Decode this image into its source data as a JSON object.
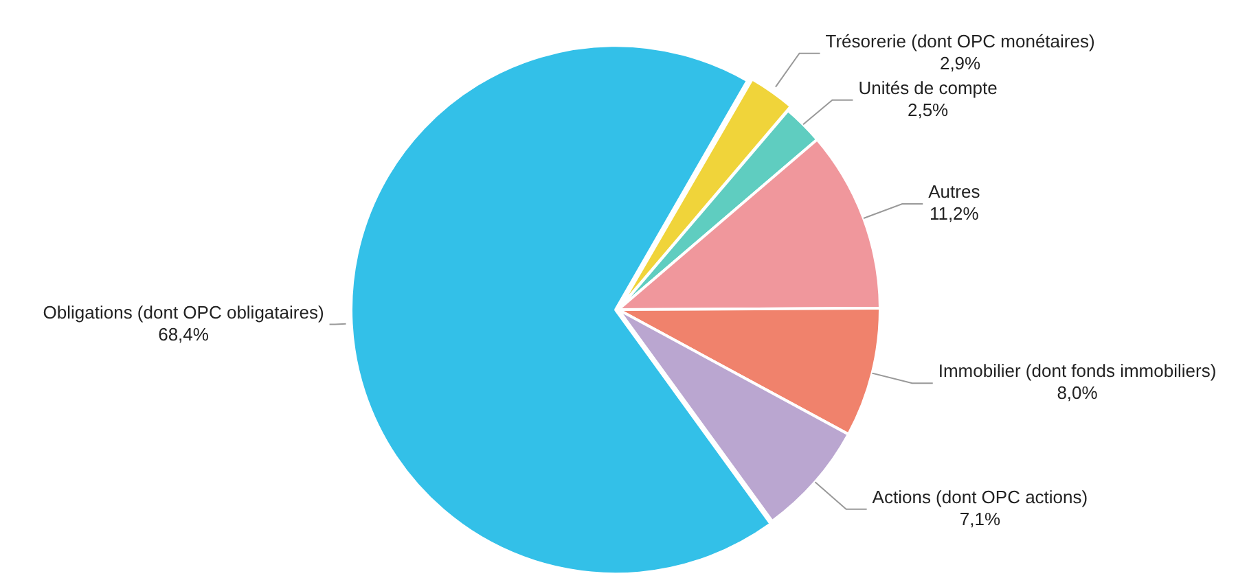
{
  "chart_data": {
    "type": "pie",
    "categories": [
      "Trésorerie (dont OPC monétaires)",
      "Unités de compte",
      "Autres",
      "Immobilier (dont fonds immobiliers)",
      "Actions (dont OPC actions)",
      "Obligations (dont OPC obligataires)"
    ],
    "values": [
      2.9,
      2.5,
      11.2,
      8.0,
      7.1,
      68.4
    ],
    "value_labels": [
      "2,9%",
      "2,5%",
      "11,2%",
      "8,0%",
      "7,1%",
      "68,4%"
    ],
    "colors": [
      "#f0d43a",
      "#5fcdc0",
      "#f0979c",
      "#f0826c",
      "#baa6d0",
      "#33c0e8"
    ],
    "legend": false
  }
}
